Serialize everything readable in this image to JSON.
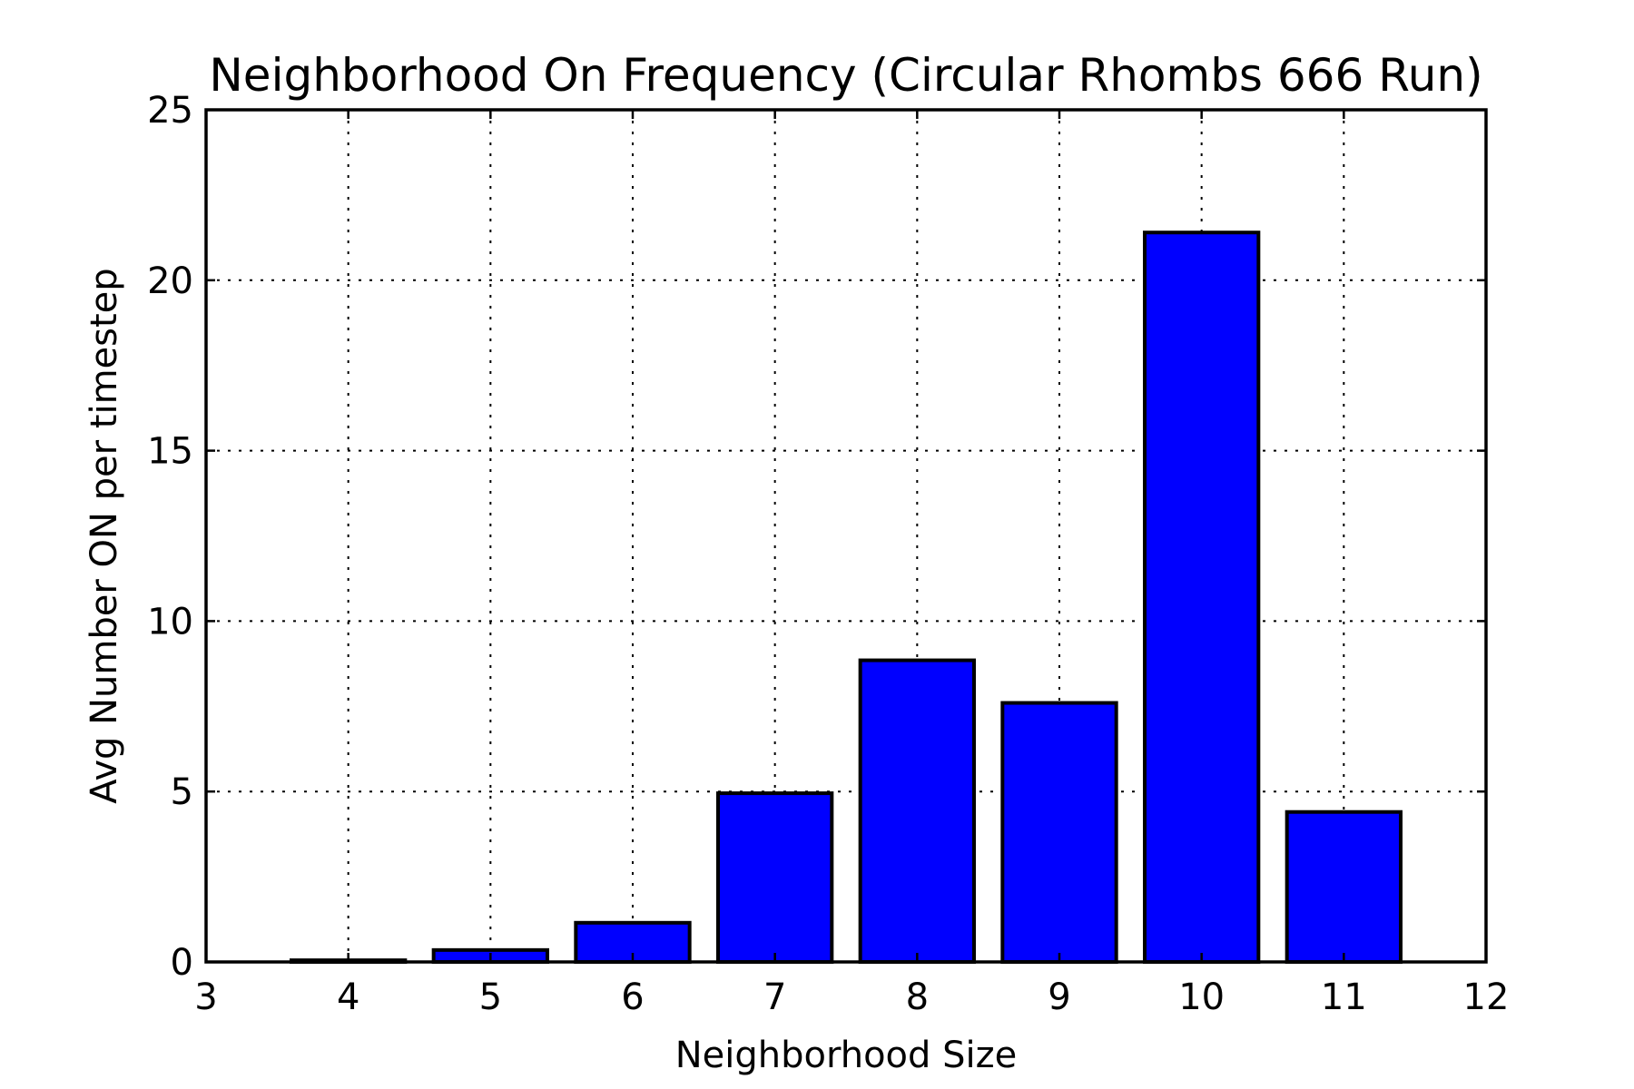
{
  "chart_data": {
    "type": "bar",
    "title": "Neighborhood On Frequency (Circular Rhombs 666 Run)",
    "xlabel": "Neighborhood Size",
    "ylabel": "Avg Number ON per timestep",
    "x": [
      4,
      5,
      6,
      7,
      8,
      9,
      10,
      11
    ],
    "values": [
      0.05,
      0.35,
      1.15,
      4.95,
      8.85,
      7.6,
      21.4,
      4.4
    ],
    "xlim": [
      3,
      12
    ],
    "ylim": [
      0,
      25
    ],
    "xticks": [
      3,
      4,
      5,
      6,
      7,
      8,
      9,
      10,
      11,
      12
    ],
    "yticks": [
      0,
      5,
      10,
      15,
      20,
      25
    ],
    "bar_width": 0.8,
    "grid": true,
    "bar_color": "#0000ff",
    "edge_color": "#000000"
  }
}
